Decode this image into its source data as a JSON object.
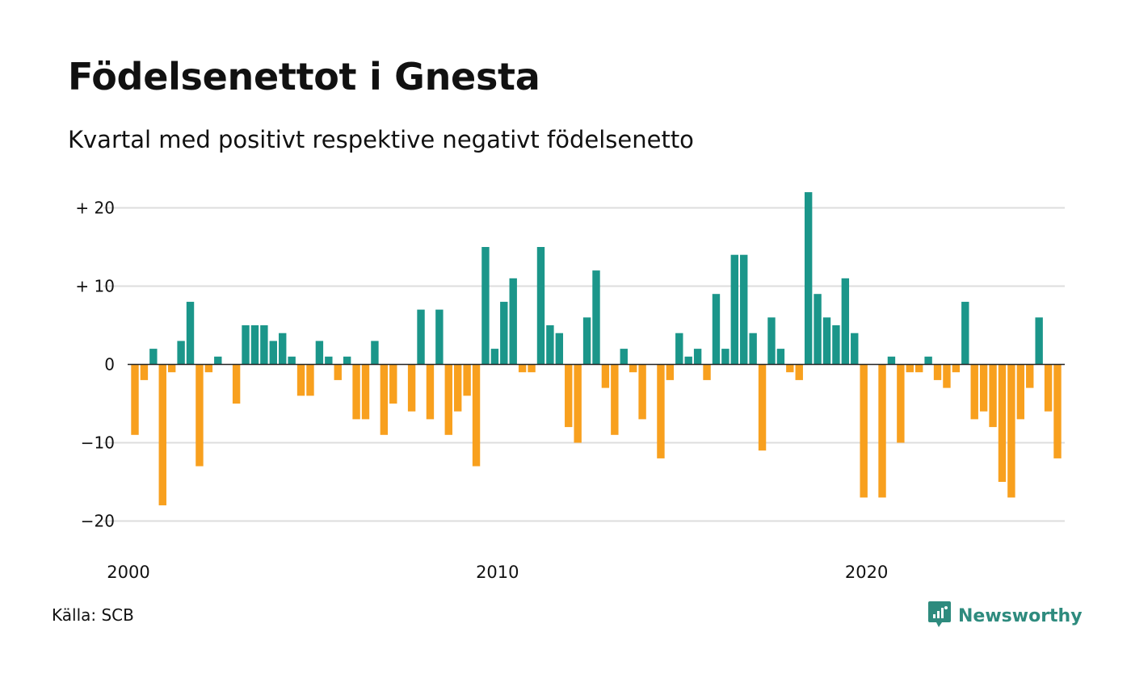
{
  "title": "Födelsenettot i Gnesta",
  "subtitle": "Kvartal med positivt respektive negativt födelsenetto",
  "source": "Källa: SCB",
  "brand": {
    "name": "Newsworthy",
    "icon": "newsworthy-logo-icon",
    "color": "#2e8b7e"
  },
  "colors": {
    "positive": "#1b968a",
    "negative": "#f8a01e",
    "grid": "#dddddd",
    "zero_line": "#222222"
  },
  "chart_data": {
    "type": "bar",
    "frequency": "quarterly",
    "x_start": "2000 Q1",
    "x_ticks": [
      "2000",
      "2010",
      "2020"
    ],
    "y_ticks": [
      {
        "value": 20,
        "label": "+ 20"
      },
      {
        "value": 10,
        "label": "+ 10"
      },
      {
        "value": 0,
        "label": "0"
      },
      {
        "value": -10,
        "label": "−10"
      },
      {
        "value": -20,
        "label": "−20"
      }
    ],
    "ylim": [
      -22,
      22
    ],
    "grid": true,
    "values": [
      -9,
      -2,
      2,
      -18,
      -1,
      3,
      8,
      -13,
      -1,
      1,
      0,
      -5,
      5,
      5,
      5,
      3,
      4,
      1,
      -4,
      -4,
      3,
      1,
      -2,
      1,
      -7,
      -7,
      3,
      -9,
      -5,
      0,
      -6,
      7,
      -7,
      7,
      -9,
      -6,
      -4,
      -13,
      15,
      2,
      8,
      11,
      -1,
      -1,
      15,
      5,
      4,
      -8,
      -10,
      6,
      12,
      -3,
      -9,
      2,
      -1,
      -7,
      0,
      -12,
      -2,
      4,
      1,
      2,
      -2,
      9,
      2,
      14,
      14,
      4,
      -11,
      6,
      2,
      -1,
      -2,
      22,
      9,
      6,
      5,
      11,
      4,
      -17,
      0,
      -17,
      1,
      -10,
      -1,
      -1,
      1,
      -2,
      -3,
      -1,
      8,
      -7,
      -6,
      -8,
      -15,
      -17,
      -7,
      -3,
      6,
      -6,
      -12
    ]
  }
}
